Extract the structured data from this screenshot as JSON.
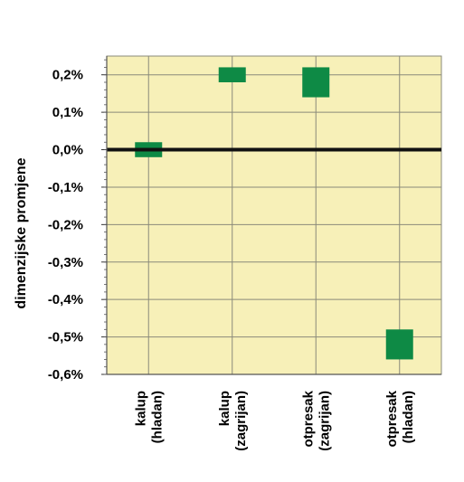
{
  "chart_data": {
    "type": "bar",
    "subtype": "floating-range",
    "categories": [
      [
        "kalup",
        "(hladan)"
      ],
      [
        "kalup",
        "(zagrijan)"
      ],
      [
        "otpresak",
        "(zagrijan)"
      ],
      [
        "otpresak",
        "(hladan)"
      ]
    ],
    "series": [
      {
        "ranges": [
          [
            -0.02,
            0.02
          ],
          [
            0.18,
            0.22
          ],
          [
            0.14,
            0.22
          ],
          [
            -0.56,
            -0.48
          ]
        ]
      }
    ],
    "ylabel": "dimenzijske promjene",
    "xlabel": "",
    "title": "",
    "ylim": [
      -0.6,
      0.25
    ],
    "yticks": [
      0.2,
      0.1,
      0.0,
      -0.1,
      -0.2,
      -0.3,
      -0.4,
      -0.5,
      -0.6
    ],
    "ytick_labels": [
      "0,2%",
      "0,1%",
      "0,0%",
      "-0,1%",
      "-0,2%",
      "-0,3%",
      "-0,4%",
      "-0,5%",
      "-0,6%"
    ],
    "grid": true,
    "legend": "none",
    "colors": {
      "plot_background": "#f7f0b8",
      "bar_fill": "#0e8a45",
      "grid": "#8a8a7a",
      "zero_line": "#111111"
    }
  }
}
